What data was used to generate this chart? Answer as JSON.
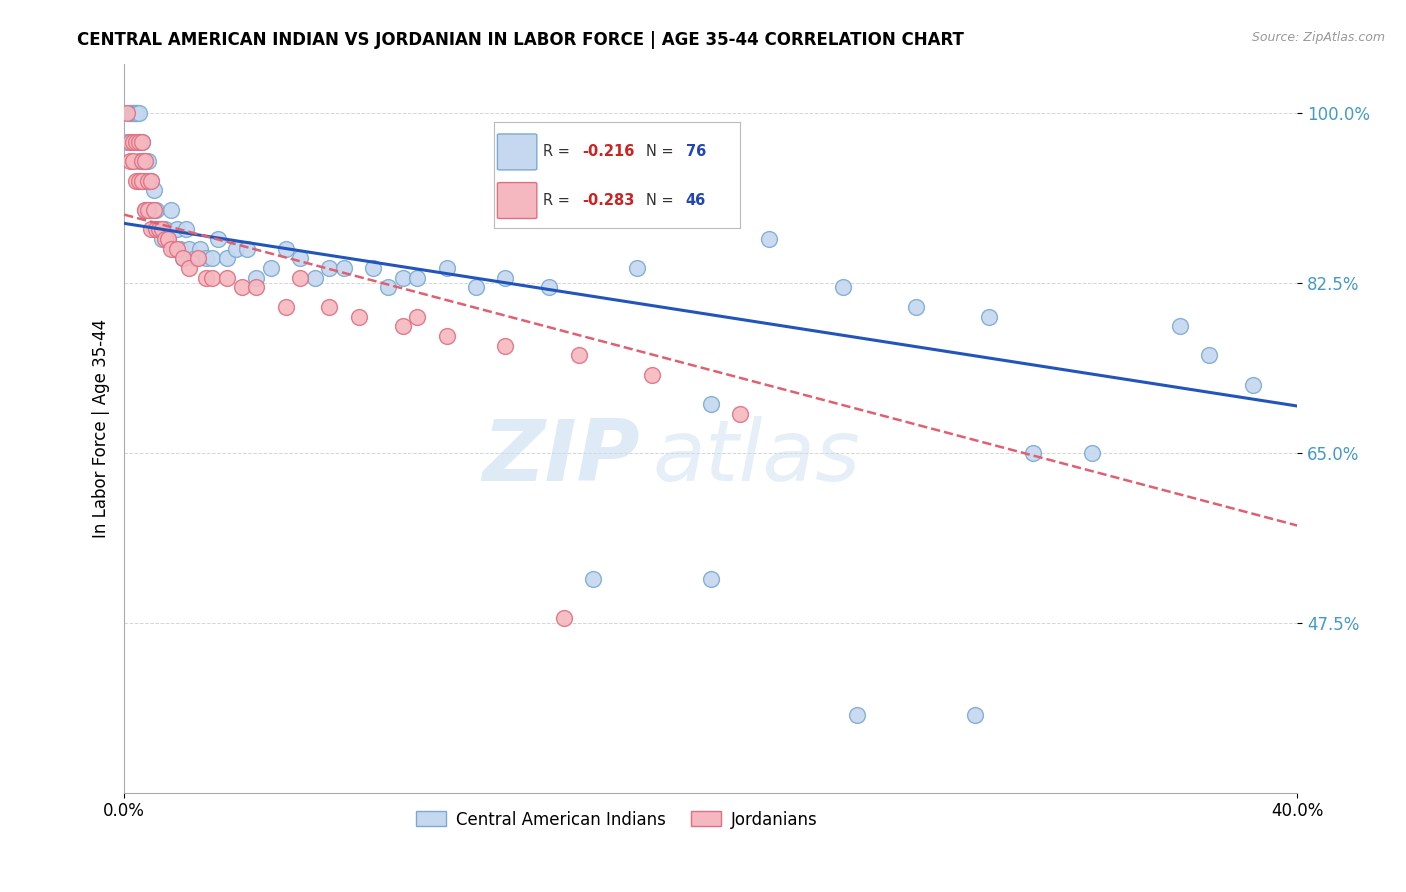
{
  "title": "CENTRAL AMERICAN INDIAN VS JORDANIAN IN LABOR FORCE | AGE 35-44 CORRELATION CHART",
  "source": "Source: ZipAtlas.com",
  "ylabel": "In Labor Force | Age 35-44",
  "xlim": [
    0.0,
    0.4
  ],
  "ylim": [
    0.3,
    1.05
  ],
  "ytick_values": [
    0.475,
    0.65,
    0.825,
    1.0
  ],
  "xtick_values": [
    0.0,
    0.4
  ],
  "blue_color": "#c5d8f0",
  "blue_edge": "#7aaad4",
  "pink_color": "#f5b8c0",
  "pink_edge": "#e07080",
  "blue_line_color": "#2255bb",
  "pink_line_color": "#e06070",
  "watermark_zip": "ZIP",
  "watermark_atlas": "atlas",
  "blue_scatter_x": [
    0.001,
    0.002,
    0.002,
    0.003,
    0.003,
    0.003,
    0.004,
    0.004,
    0.004,
    0.005,
    0.005,
    0.005,
    0.005,
    0.006,
    0.006,
    0.006,
    0.007,
    0.007,
    0.007,
    0.008,
    0.008,
    0.009,
    0.009,
    0.01,
    0.01,
    0.011,
    0.012,
    0.013,
    0.014,
    0.015,
    0.016,
    0.017,
    0.018,
    0.019,
    0.02,
    0.021,
    0.022,
    0.024,
    0.026,
    0.028,
    0.03,
    0.032,
    0.035,
    0.038,
    0.042,
    0.045,
    0.05,
    0.055,
    0.06,
    0.065,
    0.07,
    0.075,
    0.085,
    0.09,
    0.095,
    0.1,
    0.11,
    0.12,
    0.13,
    0.145,
    0.16,
    0.175,
    0.2,
    0.22,
    0.245,
    0.27,
    0.295,
    0.31,
    0.33,
    0.36,
    0.37,
    0.385,
    0.16,
    0.2,
    0.25,
    0.29
  ],
  "blue_scatter_y": [
    0.97,
    1.0,
    1.0,
    1.0,
    1.0,
    1.0,
    1.0,
    1.0,
    1.0,
    1.0,
    0.97,
    0.95,
    0.93,
    0.97,
    0.95,
    0.93,
    0.95,
    0.93,
    0.9,
    0.95,
    0.9,
    0.93,
    0.9,
    0.92,
    0.88,
    0.9,
    0.88,
    0.87,
    0.88,
    0.87,
    0.9,
    0.86,
    0.88,
    0.86,
    0.85,
    0.88,
    0.86,
    0.85,
    0.86,
    0.85,
    0.85,
    0.87,
    0.85,
    0.86,
    0.86,
    0.83,
    0.84,
    0.86,
    0.85,
    0.83,
    0.84,
    0.84,
    0.84,
    0.82,
    0.83,
    0.83,
    0.84,
    0.82,
    0.83,
    0.82,
    0.9,
    0.84,
    0.7,
    0.87,
    0.82,
    0.8,
    0.79,
    0.65,
    0.65,
    0.78,
    0.75,
    0.72,
    0.52,
    0.52,
    0.38,
    0.38
  ],
  "pink_scatter_x": [
    0.001,
    0.002,
    0.002,
    0.003,
    0.003,
    0.004,
    0.004,
    0.005,
    0.005,
    0.006,
    0.006,
    0.006,
    0.007,
    0.007,
    0.008,
    0.008,
    0.009,
    0.009,
    0.01,
    0.011,
    0.012,
    0.013,
    0.014,
    0.015,
    0.016,
    0.018,
    0.02,
    0.022,
    0.025,
    0.028,
    0.03,
    0.035,
    0.04,
    0.045,
    0.055,
    0.07,
    0.08,
    0.095,
    0.11,
    0.13,
    0.155,
    0.18,
    0.21,
    0.06,
    0.1,
    0.15
  ],
  "pink_scatter_y": [
    1.0,
    0.97,
    0.95,
    0.97,
    0.95,
    0.97,
    0.93,
    0.97,
    0.93,
    0.97,
    0.95,
    0.93,
    0.95,
    0.9,
    0.93,
    0.9,
    0.93,
    0.88,
    0.9,
    0.88,
    0.88,
    0.88,
    0.87,
    0.87,
    0.86,
    0.86,
    0.85,
    0.84,
    0.85,
    0.83,
    0.83,
    0.83,
    0.82,
    0.82,
    0.8,
    0.8,
    0.79,
    0.78,
    0.77,
    0.76,
    0.75,
    0.73,
    0.69,
    0.83,
    0.79,
    0.48
  ]
}
